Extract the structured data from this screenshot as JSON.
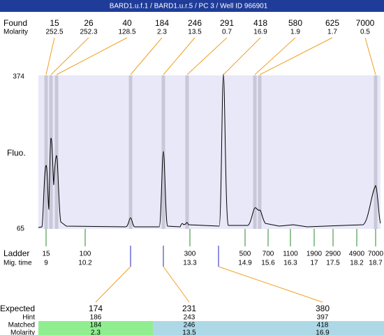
{
  "header": {
    "title": "BARD1.u.f.1 / BARD1.u.r.5 / PC 3 / Well ID 966901"
  },
  "found": {
    "label": "Found",
    "molarity_label": "Molarity",
    "peaks": [
      {
        "size": "15",
        "molarity": "252.5"
      },
      {
        "size": "26",
        "molarity": "252.3"
      },
      {
        "size": "40",
        "molarity": "128.5"
      },
      {
        "size": "184",
        "molarity": "2.3"
      },
      {
        "size": "246",
        "molarity": "13.5"
      },
      {
        "size": "291",
        "molarity": "0.7"
      },
      {
        "size": "418",
        "molarity": "16.9"
      },
      {
        "size": "580",
        "molarity": "1.9"
      },
      {
        "size": "625",
        "molarity": "1.7"
      },
      {
        "size": "7000",
        "molarity": "0.5"
      }
    ]
  },
  "axis": {
    "label": "Fluo.",
    "max": "374",
    "min": "65"
  },
  "ladder": {
    "label": "Ladder",
    "time_label": "Mig. time",
    "points": [
      {
        "size": "15",
        "time": "9"
      },
      {
        "size": "100",
        "time": "10.2"
      },
      {
        "size": "300",
        "time": "13.3"
      },
      {
        "size": "500",
        "time": "14.9"
      },
      {
        "size": "700",
        "time": "15.6"
      },
      {
        "size": "1100",
        "time": "16.3"
      },
      {
        "size": "1900",
        "time": "17"
      },
      {
        "size": "2900",
        "time": "17.5"
      },
      {
        "size": "4900",
        "time": "18.2"
      },
      {
        "size": "7000",
        "time": "18.7"
      }
    ]
  },
  "expected": {
    "label": "Expected",
    "hint_label": "Hint",
    "matched_label": "Matched",
    "molarity_label": "Molarity",
    "items": [
      {
        "expected": "174",
        "hint": "186",
        "matched": "184",
        "molarity": "2.3"
      },
      {
        "expected": "231",
        "hint": "243",
        "matched": "246",
        "molarity": "13.5"
      },
      {
        "expected": "380",
        "hint": "397",
        "matched": "418",
        "molarity": "16.9"
      }
    ]
  }
}
